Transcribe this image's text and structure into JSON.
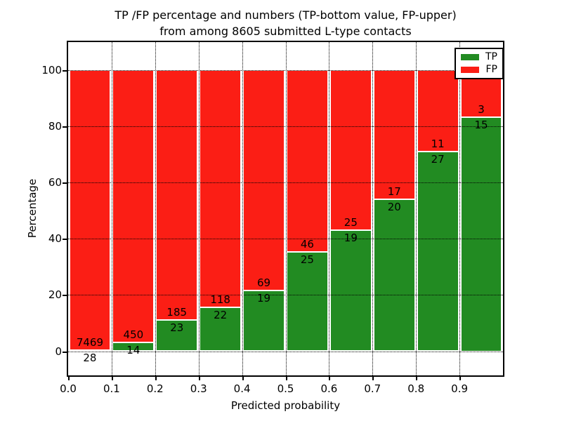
{
  "title": {
    "line1": "TP /FP percentage and numbers (TP-bottom value, FP-upper)",
    "line2": "from among 8605 submitted L-type contacts"
  },
  "chart_data": {
    "type": "bar",
    "stacked": true,
    "normalized_to_percent": true,
    "title": "TP /FP percentage and numbers (TP-bottom value, FP-upper) from among 8605 submitted L-type contacts",
    "xlabel": "Predicted probability",
    "ylabel": "Percentage",
    "bin_edges": [
      0.0,
      0.1,
      0.2,
      0.3,
      0.4,
      0.5,
      0.6,
      0.7,
      0.8,
      0.9,
      1.0
    ],
    "xtick_labels": [
      "0.0",
      "0.1",
      "0.2",
      "0.3",
      "0.4",
      "0.5",
      "0.6",
      "0.7",
      "0.8",
      "0.9"
    ],
    "ytick_values": [
      0,
      20,
      40,
      60,
      80,
      100
    ],
    "xlim": [
      0.0,
      1.0
    ],
    "ylim": [
      -8.7,
      109.6
    ],
    "grid": true,
    "grid_style": "dotted",
    "legend_position": "upper right",
    "series": [
      {
        "name": "TP",
        "color": "#228b22",
        "counts": [
          28,
          14,
          23,
          22,
          19,
          25,
          19,
          20,
          27,
          15
        ]
      },
      {
        "name": "FP",
        "color": "#fb1e15",
        "counts": [
          7469,
          450,
          185,
          118,
          69,
          46,
          25,
          17,
          11,
          3
        ]
      }
    ],
    "tp_percent": [
      0.37,
      3.02,
      11.06,
      15.71,
      21.59,
      35.21,
      43.18,
      54.05,
      71.05,
      83.33
    ],
    "fp_percent": [
      99.63,
      96.98,
      88.94,
      84.29,
      78.41,
      64.79,
      56.82,
      45.95,
      28.95,
      16.67
    ],
    "total_contacts": 8605,
    "annotation_note": "FP count printed above TP/FP boundary, TP count printed below it"
  },
  "colors": {
    "tp": "#228b22",
    "fp": "#fb1e15",
    "axis": "#000000",
    "background": "#ffffff"
  }
}
